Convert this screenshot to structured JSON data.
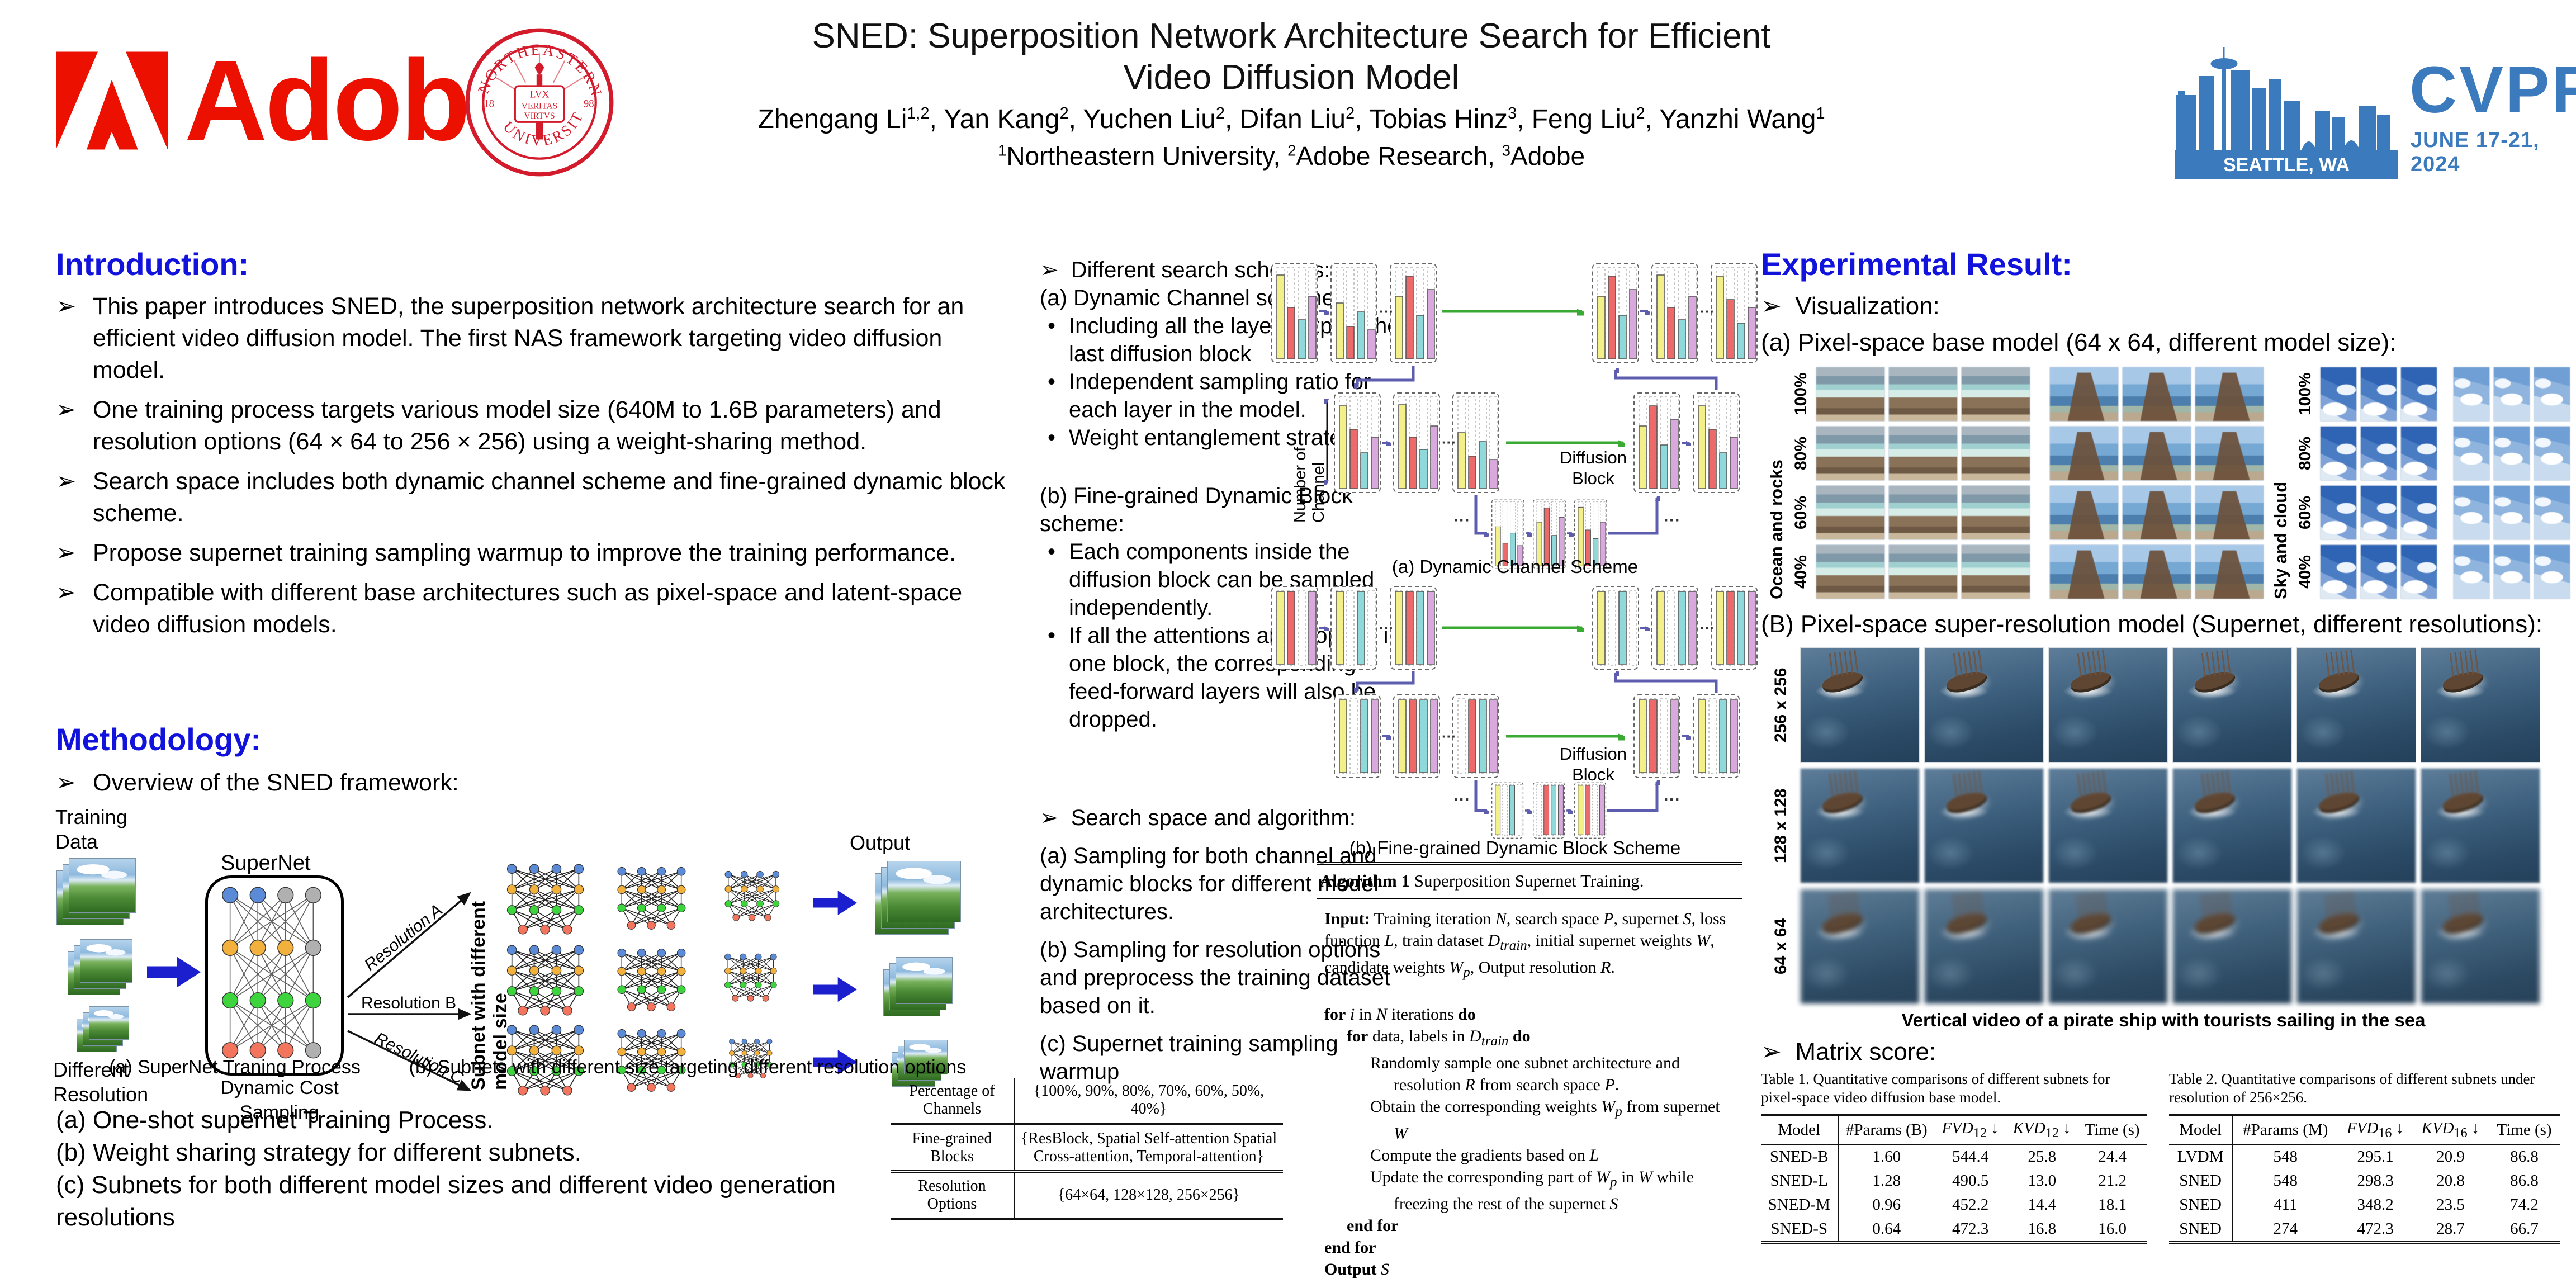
{
  "ui": {
    "bullet": "➢",
    "dot": "•",
    "dots": "···"
  },
  "colors": {
    "heading_blue": "#1212dd",
    "cvpr_blue": "#3b7abc",
    "adobe_red": "#eb1000",
    "bar_yellow": "#f3ef89",
    "bar_red": "#ed6a6a",
    "bar_cyan": "#8fd9db",
    "bar_plum": "#d9a9dd",
    "green_arrow": "#3aaa35",
    "elbow_blue": "#5d5db0",
    "big_arrow_blue": "#1b1fcd"
  },
  "icons": {
    "adobe_mark": "adobe-logo",
    "northeastern_seal": "university-seal",
    "cvpr_skyline": "seattle-skyline-logo"
  },
  "header": {
    "title_line1": "SNED: Superposition Network Architecture Search for Efficient",
    "title_line2": "Video Diffusion Model",
    "authors_html": "Zhengang Li<sup>1,2</sup>, Yan Kang<sup>2</sup>, Yuchen Liu<sup>2</sup>, Difan Liu<sup>2</sup>, Tobias Hinz<sup>3</sup>, Feng Liu<sup>2</sup>, Yanzhi Wang<sup>1</sup>",
    "affiliations_html": "<sup>1</sup>Northeastern University, <sup>2</sup>Adobe Research, <sup>3</sup>Adobe",
    "adobe_word": "Adobe",
    "seal": {
      "top": "NORTHEASTERN",
      "bottom": "UNIVERSITY",
      "motto1": "LVX",
      "motto2": "VERITAS",
      "motto3": "VIRTVS",
      "year_left": "18",
      "year_right": "98"
    },
    "cvpr": {
      "name": "CVPR",
      "location": "SEATTLE, WA",
      "dates": "JUNE 17-21, 2024"
    }
  },
  "intro": {
    "heading": "Introduction:",
    "bullets": [
      {
        "text": "This paper introduces SNED, the superposition network architecture search for an efficient video diffusion model. The first NAS framework targeting video diffusion model."
      },
      {
        "text": "One training process targets various model size (640M to 1.6B parameters) and resolution options (64 × 64 to 256 × 256) using a weight-sharing method."
      },
      {
        "text": "Search space includes both dynamic channel scheme and fine-grained dynamic block scheme."
      },
      {
        "text": "Propose supernet training sampling warmup to improve the training performance."
      },
      {
        "text": "Compatible with different base architectures such as pixel-space and latent-space video diffusion models."
      }
    ]
  },
  "methodology": {
    "heading": "Methodology:",
    "overview": "Overview of the SNED framework:",
    "diagram": {
      "training_data": "Training Data",
      "different_resolution": "Different Resolution",
      "supernet": "SuperNet",
      "cost_sampling": "Dynamic Cost Sampling",
      "res_a": "Resolution A",
      "res_b": "Resolution B",
      "res_c": "Resolution C",
      "subnet_axis": "Subnet with different model size",
      "output": "Output",
      "caption_a": "(a) SuperNet Traning Process",
      "caption_b": "(b) Subnets with different size targeting different resolution options"
    },
    "notes": [
      {
        "text": "(a) One-shot supernet Training Process."
      },
      {
        "text": "(b) Weight sharing strategy for different subnets."
      },
      {
        "text": "(c) Subnets for both different model sizes and different video generation resolutions"
      }
    ]
  },
  "middle": {
    "schemes_heading": "Different search schemes:",
    "scheme_a_title": "(a) Dynamic Channel scheme:",
    "scheme_a_bullets": [
      {
        "text": "Including all the layers expect the last diffusion block"
      },
      {
        "text": "Independent sampling ratio for each layer in the model."
      },
      {
        "text": "Weight entanglement strategy."
      }
    ],
    "scheme_b_title": "(b) Fine-grained Dynamic Block scheme:",
    "scheme_b_bullets": [
      {
        "text": "Each components inside the diffusion block can be sampled independently."
      },
      {
        "text": "If all the attentions are dropped in one block, the corresponding feed-forward layers will also be dropped."
      }
    ],
    "space_heading": "Search space and algorithm:",
    "space_items": [
      {
        "text": "(a) Sampling for both channel and dynamic blocks for different model architectures."
      },
      {
        "text": "(b) Sampling for resolution options and preprocess the training dataset based on it."
      },
      {
        "text": "(c) Supernet training sampling warmup"
      }
    ],
    "channel_axis": "Number of Channel",
    "diffusion_line1": "Diffusion",
    "diffusion_line2": "Block",
    "diagram_a_caption": "(a) Dynamic Channel Scheme",
    "diagram_b_caption": "(b) Fine-grained Dynamic Block Scheme"
  },
  "algorithm": {
    "title_html": "<b>Algorithm 1</b> Superposition Supernet Training.",
    "input_html": "<b>Input:</b> Training iteration <i>N</i>, search space <i>P</i>, supernet <i>S</i>, loss function <i>L</i>, train dataset <i>D</i><sub><i>train</i></sub>, initial supernet weights <i>W</i>, candidate weights <i>W</i><sub><i>p</i></sub>, Output resolution <i>R</i>.",
    "lines": [
      {
        "cls": "aline i0 gap",
        "html": "<b>for</b> <i>i</i> in <i>N</i> iterations <b>do</b>"
      },
      {
        "cls": "aline i1",
        "html": "<b>for</b> data, labels in <i>D</i><sub><i>train</i></sub> <b>do</b>"
      },
      {
        "cls": "aline i2h",
        "html": "Randomly sample one subnet architecture and resolution <i>R</i> from search space <i>P</i>."
      },
      {
        "cls": "aline i2h",
        "html": "Obtain the corresponding weights <i>W</i><sub><i>p</i></sub> from supernet <i>W</i>"
      },
      {
        "cls": "aline i2h",
        "html": "Compute the gradients based on <i>L</i>"
      },
      {
        "cls": "aline i2h",
        "html": "Update the corresponding part of <i>W</i><sub><i>p</i></sub> in <i>W</i> while freezing the rest of the supernet <i>S</i>"
      },
      {
        "cls": "aline i1",
        "html": "<b>end for</b>"
      },
      {
        "cls": "aline i0",
        "html": "<b>end for</b>"
      },
      {
        "cls": "aline i0",
        "html": "<b>Output</b> <i>S</i>"
      }
    ]
  },
  "search_space_table": {
    "rows": [
      {
        "k": "Percentage of Channels",
        "v": "{100%, 90%, 80%, 70%, 60%, 50%, 40%}"
      },
      {
        "k": "Fine-grained Blocks",
        "v": "{ResBlock, Spatial Self-attention Spatial Cross-attention, Temporal-attention}"
      },
      {
        "k": "Resolution Options",
        "v": "{64×64, 128×128, 256×256}"
      }
    ]
  },
  "results": {
    "heading": "Experimental Result:",
    "viz_bullet": "Visualization:",
    "a_line": "(a) Pixel-space base model (64 x 64, different model size):",
    "b_line": "(B) Pixel-space super-resolution model (Supernet, different resolutions):",
    "group1_label": "Ocean and rocks",
    "group2_label": "Sky and cloud",
    "pct_rows": [
      {
        "label": "100%"
      },
      {
        "label": "80%"
      },
      {
        "label": "60%"
      },
      {
        "label": "40%"
      }
    ],
    "res_rows": [
      {
        "label": "256 x 256"
      },
      {
        "label": "128 x 128"
      },
      {
        "label": "64 x 64"
      }
    ],
    "ship_caption": "Vertical video of a pirate ship with tourists sailing in the sea",
    "matrix_bullet": "Matrix score:"
  },
  "tables": {
    "t1": {
      "caption": "Table 1. Quantitative comparisons of different subnets for pixel-space video diffusion base model.",
      "headers_html": [
        "Model",
        "#Params (B)",
        "<i>FVD</i><sub>12</sub> ↓",
        "<i>KVD</i><sub>12</sub> ↓",
        "Time (s)"
      ],
      "rows": [
        [
          "SNED-B",
          "1.60",
          "544.4",
          "25.8",
          "24.4"
        ],
        [
          "SNED-L",
          "1.28",
          "490.5",
          "13.0",
          "21.2"
        ],
        [
          "SNED-M",
          "0.96",
          "452.2",
          "14.4",
          "18.1"
        ],
        [
          "SNED-S",
          "0.64",
          "472.3",
          "16.8",
          "16.0"
        ]
      ]
    },
    "t2": {
      "caption": "Table 2. Quantitative comparisons of different subnets under resolution of 256×256.",
      "headers_html": [
        "Model",
        "#Params (M)",
        "<i>FVD</i><sub>16</sub> ↓",
        "<i>KVD</i><sub>16</sub> ↓",
        "Time (s)"
      ],
      "rows": [
        [
          "LVDM",
          "548",
          "295.1",
          "20.9",
          "86.8"
        ],
        [
          "SNED",
          "548",
          "298.3",
          "20.8",
          "86.8"
        ],
        [
          "SNED",
          "411",
          "348.2",
          "23.5",
          "74.2"
        ],
        [
          "SNED",
          "274",
          "472.3",
          "28.7",
          "66.7"
        ]
      ]
    }
  }
}
